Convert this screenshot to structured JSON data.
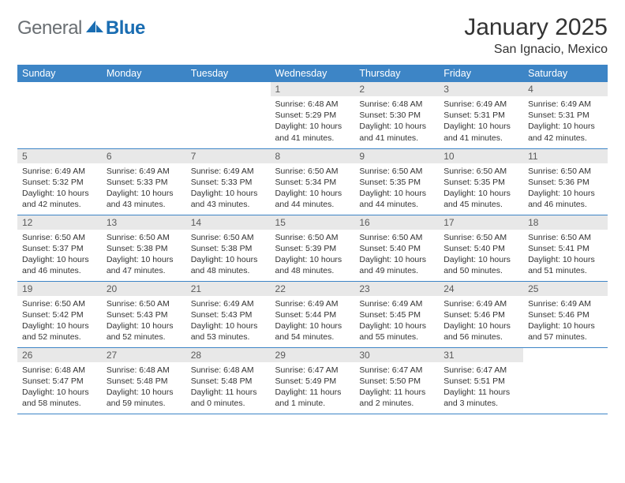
{
  "brand": {
    "part1": "General",
    "part2": "Blue"
  },
  "title": "January 2025",
  "location": "San Ignacio, Mexico",
  "colors": {
    "header_bg": "#3d85c6",
    "header_text": "#ffffff",
    "daynum_bg": "#e8e8e8",
    "daynum_text": "#5a5a5a",
    "body_text": "#333333",
    "brand_gray": "#6a6f73",
    "brand_blue": "#1a6db2",
    "row_border": "#3d85c6"
  },
  "fonts": {
    "title_size_pt": 30,
    "location_size_pt": 16,
    "header_size_pt": 12.5,
    "daynum_size_pt": 12,
    "cell_size_pt": 10.5
  },
  "weekdays": [
    "Sunday",
    "Monday",
    "Tuesday",
    "Wednesday",
    "Thursday",
    "Friday",
    "Saturday"
  ],
  "weeks": [
    [
      {
        "day": "",
        "cell": ""
      },
      {
        "day": "",
        "cell": ""
      },
      {
        "day": "",
        "cell": ""
      },
      {
        "day": "1",
        "cell": "Sunrise: 6:48 AM\nSunset: 5:29 PM\nDaylight: 10 hours and 41 minutes."
      },
      {
        "day": "2",
        "cell": "Sunrise: 6:48 AM\nSunset: 5:30 PM\nDaylight: 10 hours and 41 minutes."
      },
      {
        "day": "3",
        "cell": "Sunrise: 6:49 AM\nSunset: 5:31 PM\nDaylight: 10 hours and 41 minutes."
      },
      {
        "day": "4",
        "cell": "Sunrise: 6:49 AM\nSunset: 5:31 PM\nDaylight: 10 hours and 42 minutes."
      }
    ],
    [
      {
        "day": "5",
        "cell": "Sunrise: 6:49 AM\nSunset: 5:32 PM\nDaylight: 10 hours and 42 minutes."
      },
      {
        "day": "6",
        "cell": "Sunrise: 6:49 AM\nSunset: 5:33 PM\nDaylight: 10 hours and 43 minutes."
      },
      {
        "day": "7",
        "cell": "Sunrise: 6:49 AM\nSunset: 5:33 PM\nDaylight: 10 hours and 43 minutes."
      },
      {
        "day": "8",
        "cell": "Sunrise: 6:50 AM\nSunset: 5:34 PM\nDaylight: 10 hours and 44 minutes."
      },
      {
        "day": "9",
        "cell": "Sunrise: 6:50 AM\nSunset: 5:35 PM\nDaylight: 10 hours and 44 minutes."
      },
      {
        "day": "10",
        "cell": "Sunrise: 6:50 AM\nSunset: 5:35 PM\nDaylight: 10 hours and 45 minutes."
      },
      {
        "day": "11",
        "cell": "Sunrise: 6:50 AM\nSunset: 5:36 PM\nDaylight: 10 hours and 46 minutes."
      }
    ],
    [
      {
        "day": "12",
        "cell": "Sunrise: 6:50 AM\nSunset: 5:37 PM\nDaylight: 10 hours and 46 minutes."
      },
      {
        "day": "13",
        "cell": "Sunrise: 6:50 AM\nSunset: 5:38 PM\nDaylight: 10 hours and 47 minutes."
      },
      {
        "day": "14",
        "cell": "Sunrise: 6:50 AM\nSunset: 5:38 PM\nDaylight: 10 hours and 48 minutes."
      },
      {
        "day": "15",
        "cell": "Sunrise: 6:50 AM\nSunset: 5:39 PM\nDaylight: 10 hours and 48 minutes."
      },
      {
        "day": "16",
        "cell": "Sunrise: 6:50 AM\nSunset: 5:40 PM\nDaylight: 10 hours and 49 minutes."
      },
      {
        "day": "17",
        "cell": "Sunrise: 6:50 AM\nSunset: 5:40 PM\nDaylight: 10 hours and 50 minutes."
      },
      {
        "day": "18",
        "cell": "Sunrise: 6:50 AM\nSunset: 5:41 PM\nDaylight: 10 hours and 51 minutes."
      }
    ],
    [
      {
        "day": "19",
        "cell": "Sunrise: 6:50 AM\nSunset: 5:42 PM\nDaylight: 10 hours and 52 minutes."
      },
      {
        "day": "20",
        "cell": "Sunrise: 6:50 AM\nSunset: 5:43 PM\nDaylight: 10 hours and 52 minutes."
      },
      {
        "day": "21",
        "cell": "Sunrise: 6:49 AM\nSunset: 5:43 PM\nDaylight: 10 hours and 53 minutes."
      },
      {
        "day": "22",
        "cell": "Sunrise: 6:49 AM\nSunset: 5:44 PM\nDaylight: 10 hours and 54 minutes."
      },
      {
        "day": "23",
        "cell": "Sunrise: 6:49 AM\nSunset: 5:45 PM\nDaylight: 10 hours and 55 minutes."
      },
      {
        "day": "24",
        "cell": "Sunrise: 6:49 AM\nSunset: 5:46 PM\nDaylight: 10 hours and 56 minutes."
      },
      {
        "day": "25",
        "cell": "Sunrise: 6:49 AM\nSunset: 5:46 PM\nDaylight: 10 hours and 57 minutes."
      }
    ],
    [
      {
        "day": "26",
        "cell": "Sunrise: 6:48 AM\nSunset: 5:47 PM\nDaylight: 10 hours and 58 minutes."
      },
      {
        "day": "27",
        "cell": "Sunrise: 6:48 AM\nSunset: 5:48 PM\nDaylight: 10 hours and 59 minutes."
      },
      {
        "day": "28",
        "cell": "Sunrise: 6:48 AM\nSunset: 5:48 PM\nDaylight: 11 hours and 0 minutes."
      },
      {
        "day": "29",
        "cell": "Sunrise: 6:47 AM\nSunset: 5:49 PM\nDaylight: 11 hours and 1 minute."
      },
      {
        "day": "30",
        "cell": "Sunrise: 6:47 AM\nSunset: 5:50 PM\nDaylight: 11 hours and 2 minutes."
      },
      {
        "day": "31",
        "cell": "Sunrise: 6:47 AM\nSunset: 5:51 PM\nDaylight: 11 hours and 3 minutes."
      },
      {
        "day": "",
        "cell": ""
      }
    ]
  ]
}
